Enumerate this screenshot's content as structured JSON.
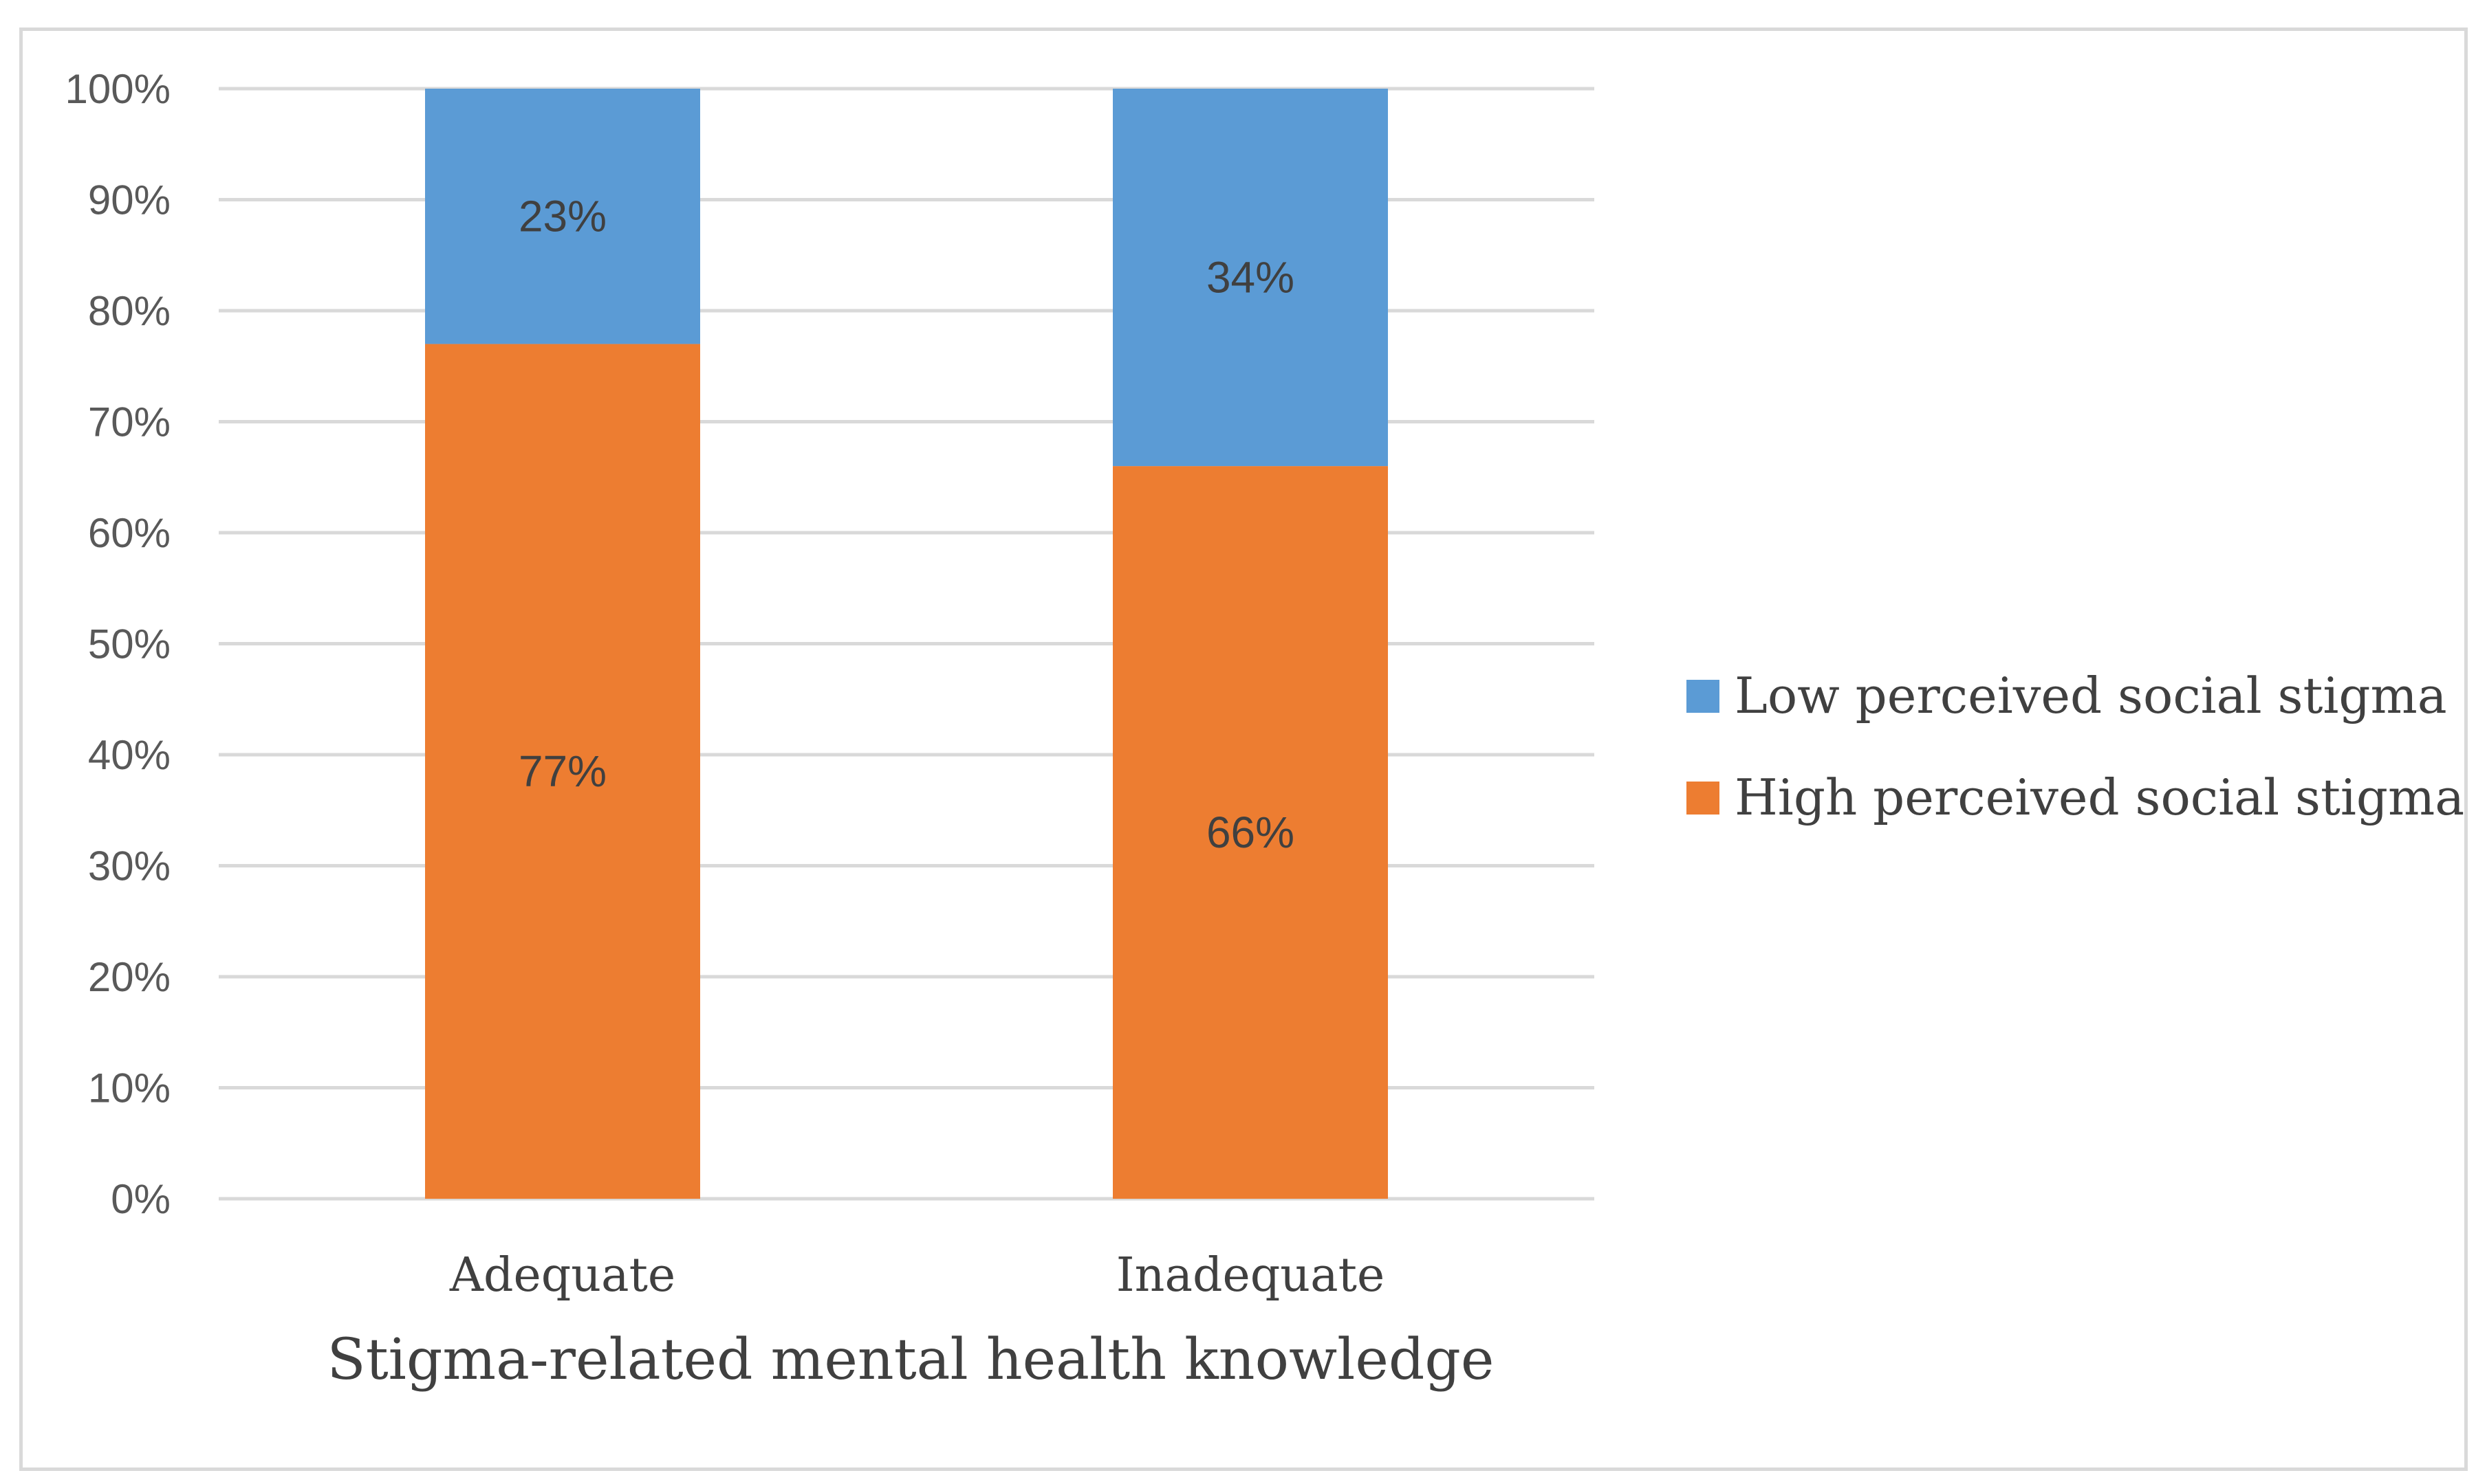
{
  "chart_data": {
    "type": "bar",
    "stacked": true,
    "categories": [
      "Adequate",
      "Inadequate"
    ],
    "series": [
      {
        "name": "High perceived social stigma",
        "values": [
          77,
          66
        ],
        "labels": [
          "77%",
          "66%"
        ],
        "color": "#ED7D31"
      },
      {
        "name": "Low perceived social stigma",
        "values": [
          23,
          34
        ],
        "labels": [
          "23%",
          "34%"
        ],
        "color": "#5B9BD5"
      }
    ],
    "xlabel": "Stigma-related mental health knowledge",
    "ylabel": "",
    "ylim": [
      0,
      100
    ],
    "yticks": [
      "0%",
      "10%",
      "20%",
      "30%",
      "40%",
      "50%",
      "60%",
      "70%",
      "80%",
      "90%",
      "100%"
    ],
    "grid": true,
    "legend_position": "right",
    "legend_order": [
      "Low perceived social stigma",
      "High perceived social stigma"
    ],
    "gridline_color": "#D9D9D9"
  }
}
